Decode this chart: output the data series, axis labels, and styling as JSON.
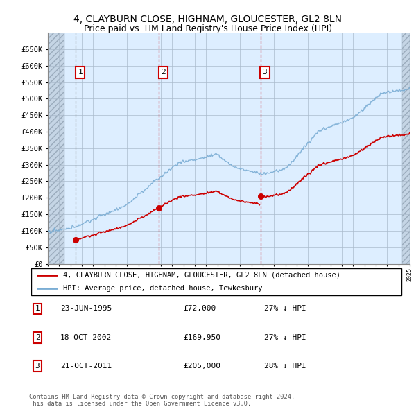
{
  "title1": "4, CLAYBURN CLOSE, HIGHNAM, GLOUCESTER, GL2 8LN",
  "title2": "Price paid vs. HM Land Registry's House Price Index (HPI)",
  "ylim": [
    0,
    700000
  ],
  "yticks": [
    0,
    50000,
    100000,
    150000,
    200000,
    250000,
    300000,
    350000,
    400000,
    450000,
    500000,
    550000,
    600000,
    650000
  ],
  "ytick_labels": [
    "£0",
    "£50K",
    "£100K",
    "£150K",
    "£200K",
    "£250K",
    "£300K",
    "£350K",
    "£400K",
    "£450K",
    "£500K",
    "£550K",
    "£600K",
    "£650K"
  ],
  "transactions": [
    {
      "date": "1995-06-23",
      "price": 72000,
      "label": "1"
    },
    {
      "date": "2002-10-18",
      "price": 169950,
      "label": "2"
    },
    {
      "date": "2011-10-21",
      "price": 205000,
      "label": "3"
    }
  ],
  "legend_property": "4, CLAYBURN CLOSE, HIGHNAM, GLOUCESTER, GL2 8LN (detached house)",
  "legend_hpi": "HPI: Average price, detached house, Tewkesbury",
  "table_rows": [
    {
      "num": "1",
      "date": "23-JUN-1995",
      "price": "£72,000",
      "hpi": "27% ↓ HPI"
    },
    {
      "num": "2",
      "date": "18-OCT-2002",
      "price": "£169,950",
      "hpi": "27% ↓ HPI"
    },
    {
      "num": "3",
      "date": "21-OCT-2011",
      "price": "£205,000",
      "hpi": "28% ↓ HPI"
    }
  ],
  "footer": "Contains HM Land Registry data © Crown copyright and database right 2024.\nThis data is licensed under the Open Government Licence v3.0.",
  "hpi_color": "#7aadd4",
  "property_color": "#cc0000",
  "bg_color": "#ddeeff",
  "hatch_color": "#c5d5e5",
  "grid_color": "#aabbcc",
  "xmin": 1993,
  "xmax": 2025,
  "hatch_left_end": 1994.5,
  "hatch_right_start": 2024.3
}
